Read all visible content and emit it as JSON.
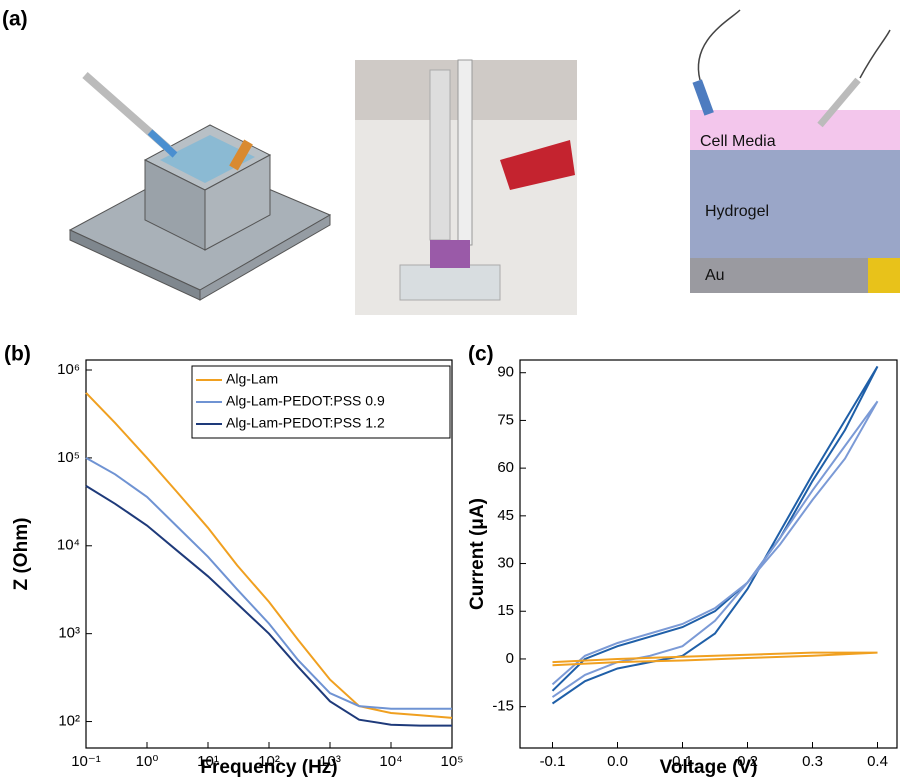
{
  "panel_labels": [
    "(a)",
    "(b)",
    "(c)"
  ],
  "diagram": {
    "labels": [
      "Cell Media",
      "Hydrogel",
      "Au"
    ]
  },
  "chart_data": [
    {
      "type": "line",
      "x_label": "Frequency (Hz)",
      "y_label": "Z (Ohm)",
      "xlog": true,
      "ylog": true,
      "legend": "upper right",
      "x": [
        0.1,
        0.3,
        1,
        3,
        10,
        30,
        100,
        300,
        1000,
        3000,
        10000,
        30000,
        100000
      ],
      "series": [
        {
          "name": "Alg-Lam",
          "color": "#f0a020",
          "values": [
            550000,
            250000,
            100000,
            42000,
            16000,
            6000,
            2300,
            850,
            300,
            150,
            125,
            118,
            110
          ]
        },
        {
          "name": "Alg-Lam-PEDOT:PSS 0.9",
          "color": "#6f93d3",
          "values": [
            100000,
            65000,
            36000,
            17000,
            7500,
            3200,
            1300,
            500,
            210,
            150,
            140,
            140,
            140
          ]
        },
        {
          "name": "Alg-Lam-PEDOT:PSS 1.2",
          "color": "#1e3a7a",
          "values": [
            48000,
            30000,
            17000,
            9000,
            4500,
            2200,
            1000,
            420,
            170,
            105,
            92,
            90,
            90
          ]
        }
      ],
      "xlim": [
        0.1,
        100000
      ],
      "ylim": [
        50,
        1300000
      ],
      "xticks": [
        {
          "value": 0.1,
          "label": "10⁻¹"
        },
        {
          "value": 1,
          "label": "10⁰"
        },
        {
          "value": 10,
          "label": "10¹"
        },
        {
          "value": 100,
          "label": "10²"
        },
        {
          "value": 1000,
          "label": "10³"
        },
        {
          "value": 10000,
          "label": "10⁴"
        },
        {
          "value": 100000,
          "label": "10⁵"
        }
      ],
      "yticks": [
        {
          "value": 100,
          "label": "10²"
        },
        {
          "value": 1000,
          "label": "10³"
        },
        {
          "value": 10000,
          "label": "10⁴"
        },
        {
          "value": 100000,
          "label": "10⁵"
        },
        {
          "value": 1000000,
          "label": "10⁶"
        }
      ]
    },
    {
      "type": "line",
      "x_label": "Voltage (V)",
      "y_label": "Current (μA)",
      "series": [
        {
          "color": "#1f5fa8",
          "x": [
            -0.1,
            -0.05,
            0,
            0.05,
            0.1,
            0.15,
            0.2,
            0.25,
            0.3,
            0.35,
            0.4,
            0.35,
            0.3,
            0.25,
            0.2,
            0.15,
            0.1,
            0.05,
            0,
            -0.05,
            -0.1
          ],
          "values": [
            -14,
            -7,
            -3,
            -1,
            1,
            8,
            22,
            40,
            58,
            75,
            92,
            72,
            56,
            38,
            24,
            15,
            10,
            7,
            4,
            0,
            -10
          ]
        },
        {
          "color": "#7b9ad6",
          "x": [
            -0.1,
            -0.05,
            0,
            0.05,
            0.1,
            0.15,
            0.2,
            0.25,
            0.3,
            0.35,
            0.4,
            0.35,
            0.3,
            0.25,
            0.2,
            0.15,
            0.1,
            0.05,
            0,
            -0.05,
            -0.1
          ],
          "values": [
            -12,
            -5,
            -1,
            1,
            4,
            12,
            24,
            38,
            53,
            67,
            81,
            63,
            50,
            36,
            24,
            16,
            11,
            8,
            5,
            1,
            -8
          ]
        },
        {
          "color": "#f0a020",
          "x": [
            -0.1,
            0,
            0.1,
            0.2,
            0.3,
            0.4,
            0.3,
            0.2,
            0.1,
            0,
            -0.1
          ],
          "values": [
            -2,
            -1,
            -0.5,
            0.3,
            1,
            2,
            2,
            1.3,
            0.7,
            0,
            -1
          ]
        }
      ],
      "xlim": [
        -0.15,
        0.43
      ],
      "ylim": [
        -28,
        94
      ],
      "xticks": [
        -0.1,
        {
          "value": 0,
          "label": "0.0"
        },
        0.1,
        0.2,
        0.3,
        0.4
      ],
      "yticks": [
        -15,
        0,
        15,
        30,
        45,
        60,
        75,
        90
      ]
    }
  ]
}
